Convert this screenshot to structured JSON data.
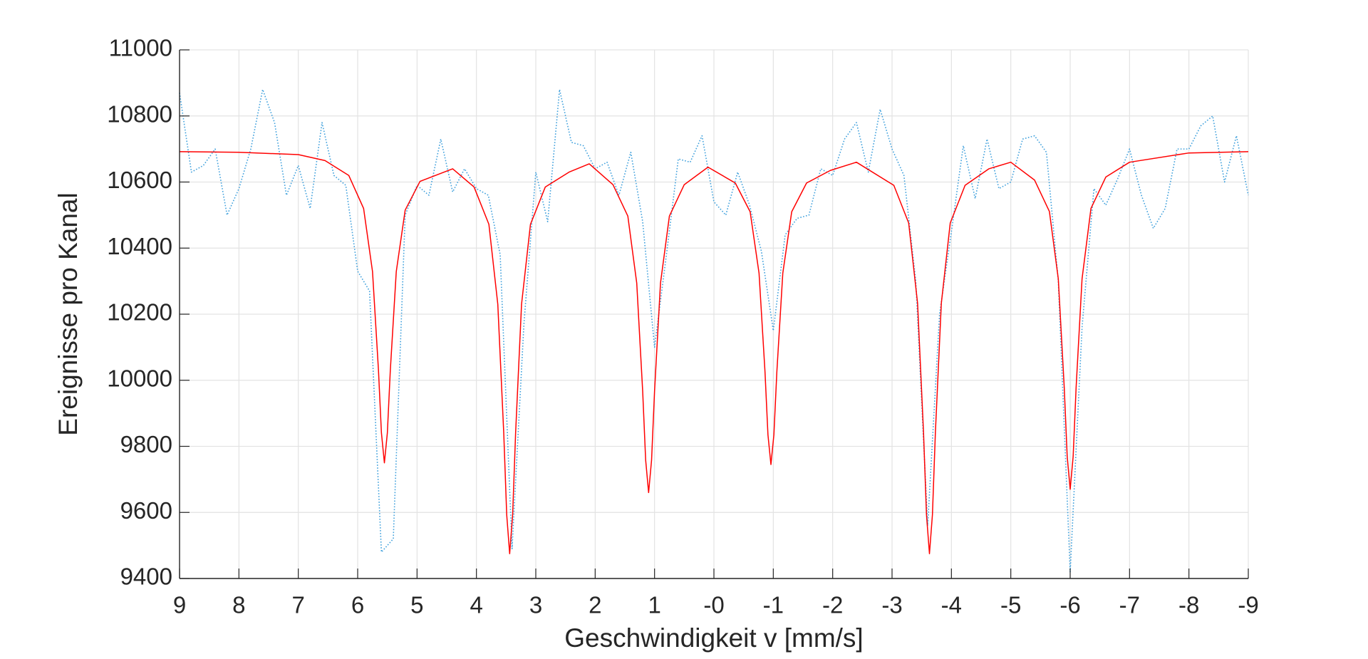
{
  "chart_data": {
    "type": "line",
    "x_label": "Geschwindigkeit v [mm/s]",
    "y_label": "Ereignisse pro Kanal",
    "xlim": [
      9,
      -9
    ],
    "ylim": [
      9400,
      11000
    ],
    "xticks": [
      9,
      8,
      7,
      6,
      5,
      4,
      3,
      2,
      1,
      {
        "value": 0,
        "label": "-0"
      },
      -1,
      -2,
      -3,
      -4,
      -5,
      -6,
      -7,
      -8,
      -9
    ],
    "yticks": [
      9400,
      9600,
      9800,
      10000,
      10200,
      10400,
      10600,
      10800,
      11000
    ],
    "grid": true,
    "series": [
      {
        "color": "#3fa0dc",
        "line_style": "dotted",
        "x": [
          9,
          8.8,
          8.6,
          8.4,
          8.2,
          8,
          7.8,
          7.6,
          7.4,
          7.2,
          7,
          6.8,
          6.6,
          6.4,
          6.2,
          6,
          5.8,
          5.6,
          5.4,
          5.2,
          5,
          4.8,
          4.6,
          4.4,
          4.2,
          4,
          3.8,
          3.6,
          3.4,
          3.2,
          3,
          2.8,
          2.6,
          2.4,
          2.2,
          2,
          1.8,
          1.6,
          1.4,
          1.2,
          1,
          0.8,
          0.6,
          0.4,
          0.2,
          0,
          -0.2,
          -0.4,
          -0.6,
          -0.8,
          -1,
          -1.2,
          -1.4,
          -1.6,
          -1.8,
          -2,
          -2.2,
          -2.4,
          -2.6,
          -2.8,
          -3,
          -3.2,
          -3.4,
          -3.6,
          -3.8,
          -4,
          -4.2,
          -4.4,
          -4.6,
          -4.8,
          -5,
          -5.2,
          -5.4,
          -5.6,
          -5.8,
          -6,
          -6.2,
          -6.4,
          -6.6,
          -6.8,
          -7,
          -7.2,
          -7.4,
          -7.6,
          -7.8,
          -8,
          -8.2,
          -8.4,
          -8.6,
          -8.8,
          -9
        ],
        "values": [
          10870,
          10630,
          10650,
          10700,
          10500,
          10580,
          10700,
          10880,
          10780,
          10560,
          10650,
          10520,
          10780,
          10620,
          10590,
          10330,
          10270,
          9480,
          9520,
          10500,
          10590,
          10560,
          10730,
          10570,
          10640,
          10580,
          10560,
          10380,
          9490,
          10170,
          10630,
          10480,
          10880,
          10720,
          10710,
          10640,
          10660,
          10560,
          10690,
          10480,
          10100,
          10380,
          10670,
          10660,
          10740,
          10540,
          10500,
          10630,
          10530,
          10390,
          10150,
          10440,
          10490,
          10500,
          10640,
          10620,
          10730,
          10780,
          10630,
          10820,
          10700,
          10620,
          10300,
          9560,
          10200,
          10450,
          10710,
          10550,
          10730,
          10580,
          10600,
          10730,
          10740,
          10690,
          10300,
          9420,
          10160,
          10580,
          10530,
          10610,
          10700,
          10560,
          10460,
          10520,
          10700,
          10700,
          10770,
          10800,
          10600,
          10740,
          10560
        ]
      },
      {
        "color": "#ff0000",
        "line_style": "solid",
        "x": [
          9,
          8,
          7,
          6.55,
          6.15,
          5.9,
          5.75,
          5.65,
          5.6,
          5.55,
          5.5,
          5.45,
          5.35,
          5.2,
          4.95,
          4.4,
          4.04,
          3.79,
          3.64,
          3.54,
          3.49,
          3.44,
          3.39,
          3.34,
          3.24,
          3.09,
          2.84,
          2.44,
          2.1,
          1.7,
          1.45,
          1.3,
          1.2,
          1.15,
          1.1,
          1.05,
          1.0,
          0.9,
          0.75,
          0.5,
          0.1,
          -0.36,
          -0.61,
          -0.76,
          -0.86,
          -0.91,
          -0.96,
          -1.01,
          -1.06,
          -1.16,
          -1.31,
          -1.56,
          -1.96,
          -2.4,
          -3.03,
          -3.28,
          -3.43,
          -3.53,
          -3.58,
          -3.63,
          -3.68,
          -3.73,
          -3.83,
          -3.98,
          -4.23,
          -4.63,
          -5,
          -5.4,
          -5.65,
          -5.8,
          -5.9,
          -5.95,
          -6,
          -6.05,
          -6.1,
          -6.2,
          -6.35,
          -6.6,
          -7,
          -8,
          -9
        ],
        "values": [
          10692,
          10690,
          10683,
          10665,
          10620,
          10520,
          10329,
          10031,
          9841,
          9750,
          9841,
          10031,
          10329,
          10515,
          10602,
          10640,
          10585,
          10472,
          10230,
          9841,
          9593,
          9475,
          9593,
          9841,
          10230,
          10472,
          10585,
          10630,
          10655,
          10592,
          10497,
          10294,
          9967,
          9759,
          9660,
          9759,
          9967,
          10294,
          10497,
          10592,
          10645,
          10597,
          10510,
          10324,
          10026,
          9835,
          9745,
          9835,
          10026,
          10324,
          10510,
          10597,
          10635,
          10660,
          10590,
          10476,
          10233,
          9842,
          9593,
          9475,
          9593,
          9842,
          10233,
          10476,
          10590,
          10640,
          10660,
          10606,
          10511,
          10307,
          9978,
          9769,
          9670,
          9769,
          9978,
          10307,
          10520,
          10615,
          10660,
          10688,
          10692
        ]
      }
    ]
  }
}
